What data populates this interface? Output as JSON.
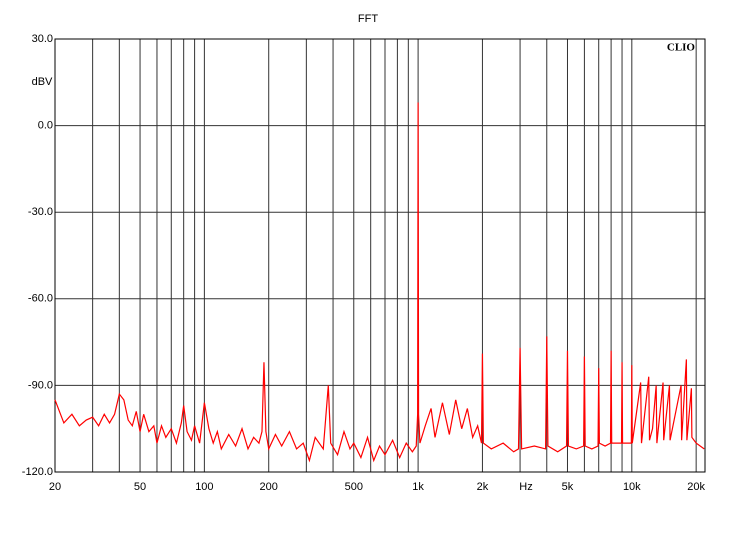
{
  "chart_data": {
    "type": "line",
    "title": "FFT",
    "ylabel": "dBV",
    "xlabel": "Hz",
    "brand": "CLIO",
    "xscale": "log",
    "xlim": [
      20,
      22000
    ],
    "ylim": [
      -120,
      30
    ],
    "yticks": [
      {
        "value": -120,
        "label": "-120.0"
      },
      {
        "value": -90,
        "label": "-90.0"
      },
      {
        "value": -60,
        "label": "-60.0"
      },
      {
        "value": -30,
        "label": "-30.0"
      },
      {
        "value": 0,
        "label": "0.0"
      },
      {
        "value": 30,
        "label": "30.0"
      }
    ],
    "xticks": [
      20,
      50,
      100,
      200,
      500,
      {
        "value": 1000,
        "label": "1k"
      },
      {
        "value": 2000,
        "label": "2k"
      },
      {
        "value": 5000,
        "label": "5k"
      },
      {
        "value": 10000,
        "label": "10k"
      },
      {
        "value": 20000,
        "label": "20k"
      }
    ],
    "xgrid": [
      30,
      40,
      60,
      70,
      80,
      90,
      300,
      400,
      600,
      700,
      800,
      900,
      3000,
      4000,
      6000,
      7000,
      8000,
      9000
    ],
    "grid": true,
    "color": "#ff0000",
    "x": [
      20,
      22,
      24,
      26,
      28,
      30,
      32,
      34,
      36,
      38,
      40,
      42,
      44,
      46,
      48,
      50,
      52,
      55,
      58,
      60,
      63,
      66,
      70,
      74,
      78,
      80,
      83,
      87,
      90,
      95,
      100,
      105,
      110,
      115,
      120,
      130,
      140,
      150,
      160,
      170,
      180,
      186,
      190,
      194,
      200,
      215,
      230,
      250,
      270,
      290,
      310,
      330,
      360,
      380,
      390,
      420,
      450,
      480,
      500,
      540,
      580,
      620,
      660,
      700,
      760,
      820,
      880,
      940,
      980,
      995,
      1000,
      1005,
      1020,
      1080,
      1150,
      1200,
      1300,
      1400,
      1500,
      1600,
      1700,
      1800,
      1900,
      1980,
      2000,
      2020,
      2200,
      2500,
      2800,
      2950,
      3000,
      3050,
      3500,
      3950,
      4000,
      4050,
      4500,
      4950,
      5000,
      5050,
      5500,
      5950,
      6000,
      6050,
      6500,
      6950,
      7000,
      7050,
      7500,
      7950,
      8000,
      8050,
      8950,
      9000,
      9050,
      9950,
      10000,
      10050,
      11000,
      11100,
      12000,
      12100,
      12500,
      13000,
      13100,
      14000,
      14100,
      15000,
      15100,
      17000,
      17100,
      18000,
      18100,
      19000,
      19100,
      20000,
      21800
    ],
    "values": [
      -95,
      -103,
      -100,
      -104,
      -102,
      -101,
      -104,
      -100,
      -103,
      -100,
      -93,
      -95,
      -102,
      -104,
      -99,
      -106,
      -100,
      -106,
      -104,
      -110,
      -104,
      -108,
      -105,
      -110,
      -103,
      -97,
      -106,
      -109,
      -104,
      -110,
      -96,
      -105,
      -110,
      -106,
      -112,
      -107,
      -111,
      -105,
      -112,
      -108,
      -110,
      -106,
      -82,
      -106,
      -112,
      -107,
      -111,
      -106,
      -112,
      -110,
      -116,
      -108,
      -112,
      -90,
      -110,
      -114,
      -106,
      -112,
      -110,
      -115,
      -108,
      -116,
      -111,
      -114,
      -109,
      -115,
      -110,
      -113,
      -111,
      -100,
      8,
      -100,
      -110,
      -104,
      -98,
      -108,
      -96,
      -107,
      -95,
      -105,
      -98,
      -108,
      -104,
      -110,
      -79,
      -110,
      -112,
      -110,
      -113,
      -112,
      -77,
      -112,
      -111,
      -112,
      -73,
      -111,
      -113,
      -111,
      -78,
      -111,
      -112,
      -111,
      -80,
      -111,
      -112,
      -111,
      -84,
      -110,
      -111,
      -110,
      -78,
      -110,
      -110,
      -82,
      -110,
      -110,
      -83,
      -110,
      -89,
      -110,
      -87,
      -109,
      -105,
      -90,
      -110,
      -89,
      -109,
      -90,
      -109,
      -90,
      -109,
      -81,
      -109,
      -91,
      -108,
      -110,
      -112
    ]
  }
}
